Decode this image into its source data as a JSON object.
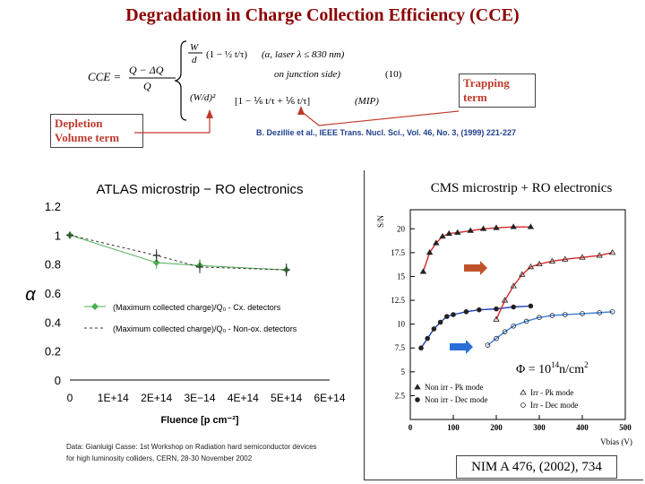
{
  "slide": {
    "title": "Degradation in Charge Collection Efficiency (CCE)",
    "trapping_label": "Trapping term",
    "depletion_label": "Depletion Volume term",
    "citation": "B. Dezillie et al., IEEE Trans. Nucl. Sci., Vol. 46, No. 3, (1999) 221-227",
    "equation": {
      "lhs": "CCE =",
      "fraction_num": "Q − ΔQ",
      "fraction_den": "Q",
      "case1": "(α, laser λ ≤ 830 nm)",
      "case1b": "on junction side)",
      "eq_number": "(10)",
      "case2": "(MIP)"
    }
  },
  "atlas_chart": {
    "footnote_1": "Data: Gianluigi Casse: 1st Workshop on Radiation hard semiconductor devices",
    "footnote_2": "for high luminosity colliders, CERN, 28-30 November 2002"
  },
  "cms_chart": {
    "reference": "NIM A 476, (2002), 734",
    "phi_label": "Φ = 10",
    "phi_exp": "14",
    "phi_unit": "n/cm",
    "phi_unit_exp": "2"
  },
  "chart_data": [
    {
      "type": "line",
      "title": "ATLAS microstrip − RO electronics",
      "xlabel": "Fluence [p cm⁻²]",
      "ylabel": "α",
      "xlim": [
        0,
        600000000000000.0
      ],
      "ylim": [
        0,
        1.2
      ],
      "x_ticks": [
        "0",
        "1E+14",
        "2E+14",
        "3E−14",
        "4E+14",
        "5E+14",
        "6E+14"
      ],
      "y_ticks": [
        "0",
        "0.2",
        "0.4",
        "0.6",
        "0.8",
        "1",
        "1.2"
      ],
      "legend_position": "center",
      "series": [
        {
          "name": "(Maximum collected charge)/Q₀ - Cx. detectors",
          "x": [
            0,
            200000000000000.0,
            300000000000000.0,
            500000000000000.0
          ],
          "y": [
            1.0,
            0.81,
            0.79,
            0.76
          ]
        },
        {
          "name": "(Maximum collected charge)/Q₀ - Non-ox. detectors",
          "x": [
            0,
            200000000000000.0,
            300000000000000.0,
            500000000000000.0
          ],
          "y": [
            1.0,
            0.86,
            0.78,
            0.76
          ]
        }
      ]
    },
    {
      "type": "scatter",
      "title": "CMS microstrip + RO electronics",
      "xlabel": "Vbias (V)",
      "ylabel": "S/N",
      "xlim": [
        0,
        500
      ],
      "ylim": [
        0,
        22
      ],
      "x_ticks": [
        "0",
        "100",
        "200",
        "300",
        "400",
        "500"
      ],
      "y_ticks": [
        "2.5",
        "5",
        "7.5",
        "10",
        "12.5",
        "15",
        "17.5",
        "20"
      ],
      "legend_position": "bottom",
      "series": [
        {
          "name": "Non irr - Pk mode",
          "x": [
            30,
            45,
            60,
            75,
            90,
            110,
            140,
            170,
            200,
            240,
            280
          ],
          "y": [
            15.5,
            17.5,
            18.5,
            19.2,
            19.5,
            19.6,
            19.8,
            20,
            20.1,
            20.2,
            20.2
          ]
        },
        {
          "name": "Non irr - Dec mode",
          "x": [
            25,
            40,
            55,
            70,
            85,
            100,
            130,
            160,
            200,
            240,
            280
          ],
          "y": [
            7.5,
            8.5,
            9.5,
            10.2,
            10.8,
            11,
            11.3,
            11.5,
            11.6,
            11.8,
            11.9
          ]
        },
        {
          "name": "Irr - Pk mode",
          "x": [
            200,
            220,
            240,
            260,
            280,
            300,
            330,
            360,
            400,
            440,
            470
          ],
          "y": [
            10.5,
            12.5,
            14,
            15.2,
            16,
            16.3,
            16.6,
            16.8,
            17,
            17.2,
            17.5
          ]
        },
        {
          "name": "Irr - Dec mode",
          "x": [
            180,
            200,
            220,
            240,
            270,
            300,
            330,
            360,
            400,
            440,
            470
          ],
          "y": [
            7.8,
            8.5,
            9.2,
            9.8,
            10.3,
            10.7,
            10.9,
            11,
            11.1,
            11.2,
            11.3
          ]
        }
      ]
    }
  ]
}
